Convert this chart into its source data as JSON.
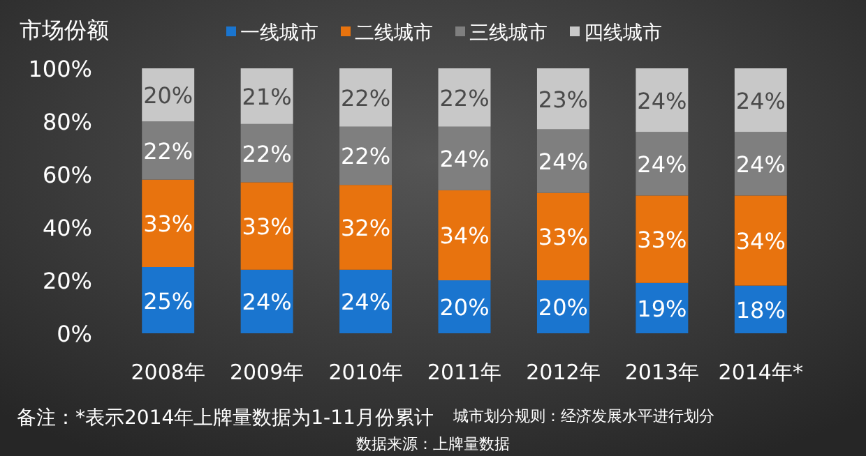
{
  "chart_data": {
    "type": "bar",
    "stacked": true,
    "ylabel": "市场份额",
    "categories": [
      "2008年",
      "2009年",
      "2010年",
      "2011年",
      "2012年",
      "2013年",
      "2014年*"
    ],
    "series": [
      {
        "name": "一线城市",
        "color": "#1a75cf",
        "values": [
          25,
          24,
          24,
          20,
          20,
          19,
          18
        ],
        "value_labels": [
          "25%",
          "24%",
          "24%",
          "20%",
          "20%",
          "19%",
          "18%"
        ]
      },
      {
        "name": "二线城市",
        "color": "#e8730e",
        "values": [
          33,
          33,
          32,
          34,
          33,
          33,
          34
        ],
        "value_labels": [
          "33%",
          "33%",
          "32%",
          "34%",
          "33%",
          "33%",
          "34%"
        ]
      },
      {
        "name": "三线城市",
        "color": "#7f7f7f",
        "values": [
          22,
          22,
          22,
          24,
          24,
          24,
          24
        ],
        "value_labels": [
          "22%",
          "22%",
          "22%",
          "24%",
          "24%",
          "24%",
          "24%"
        ]
      },
      {
        "name": "四线城市",
        "color": "#c8c8c8",
        "values": [
          20,
          21,
          22,
          22,
          23,
          24,
          24
        ],
        "value_labels": [
          "20%",
          "21%",
          "22%",
          "22%",
          "23%",
          "24%",
          "24%"
        ]
      }
    ],
    "ylim": [
      0,
      100
    ],
    "yticks": [
      {
        "value": 0,
        "label": "0%"
      },
      {
        "value": 20,
        "label": "20%"
      },
      {
        "value": 40,
        "label": "40%"
      },
      {
        "value": 60,
        "label": "60%"
      },
      {
        "value": 80,
        "label": "80%"
      },
      {
        "value": 100,
        "label": "100%"
      }
    ],
    "legend": "top",
    "grid": false,
    "annotations": [
      "备注：*表示2014年上牌量数据为1-11月份累计",
      "城市划分规则：经济发展水平进行划分",
      "数据来源：上牌量数据"
    ]
  }
}
